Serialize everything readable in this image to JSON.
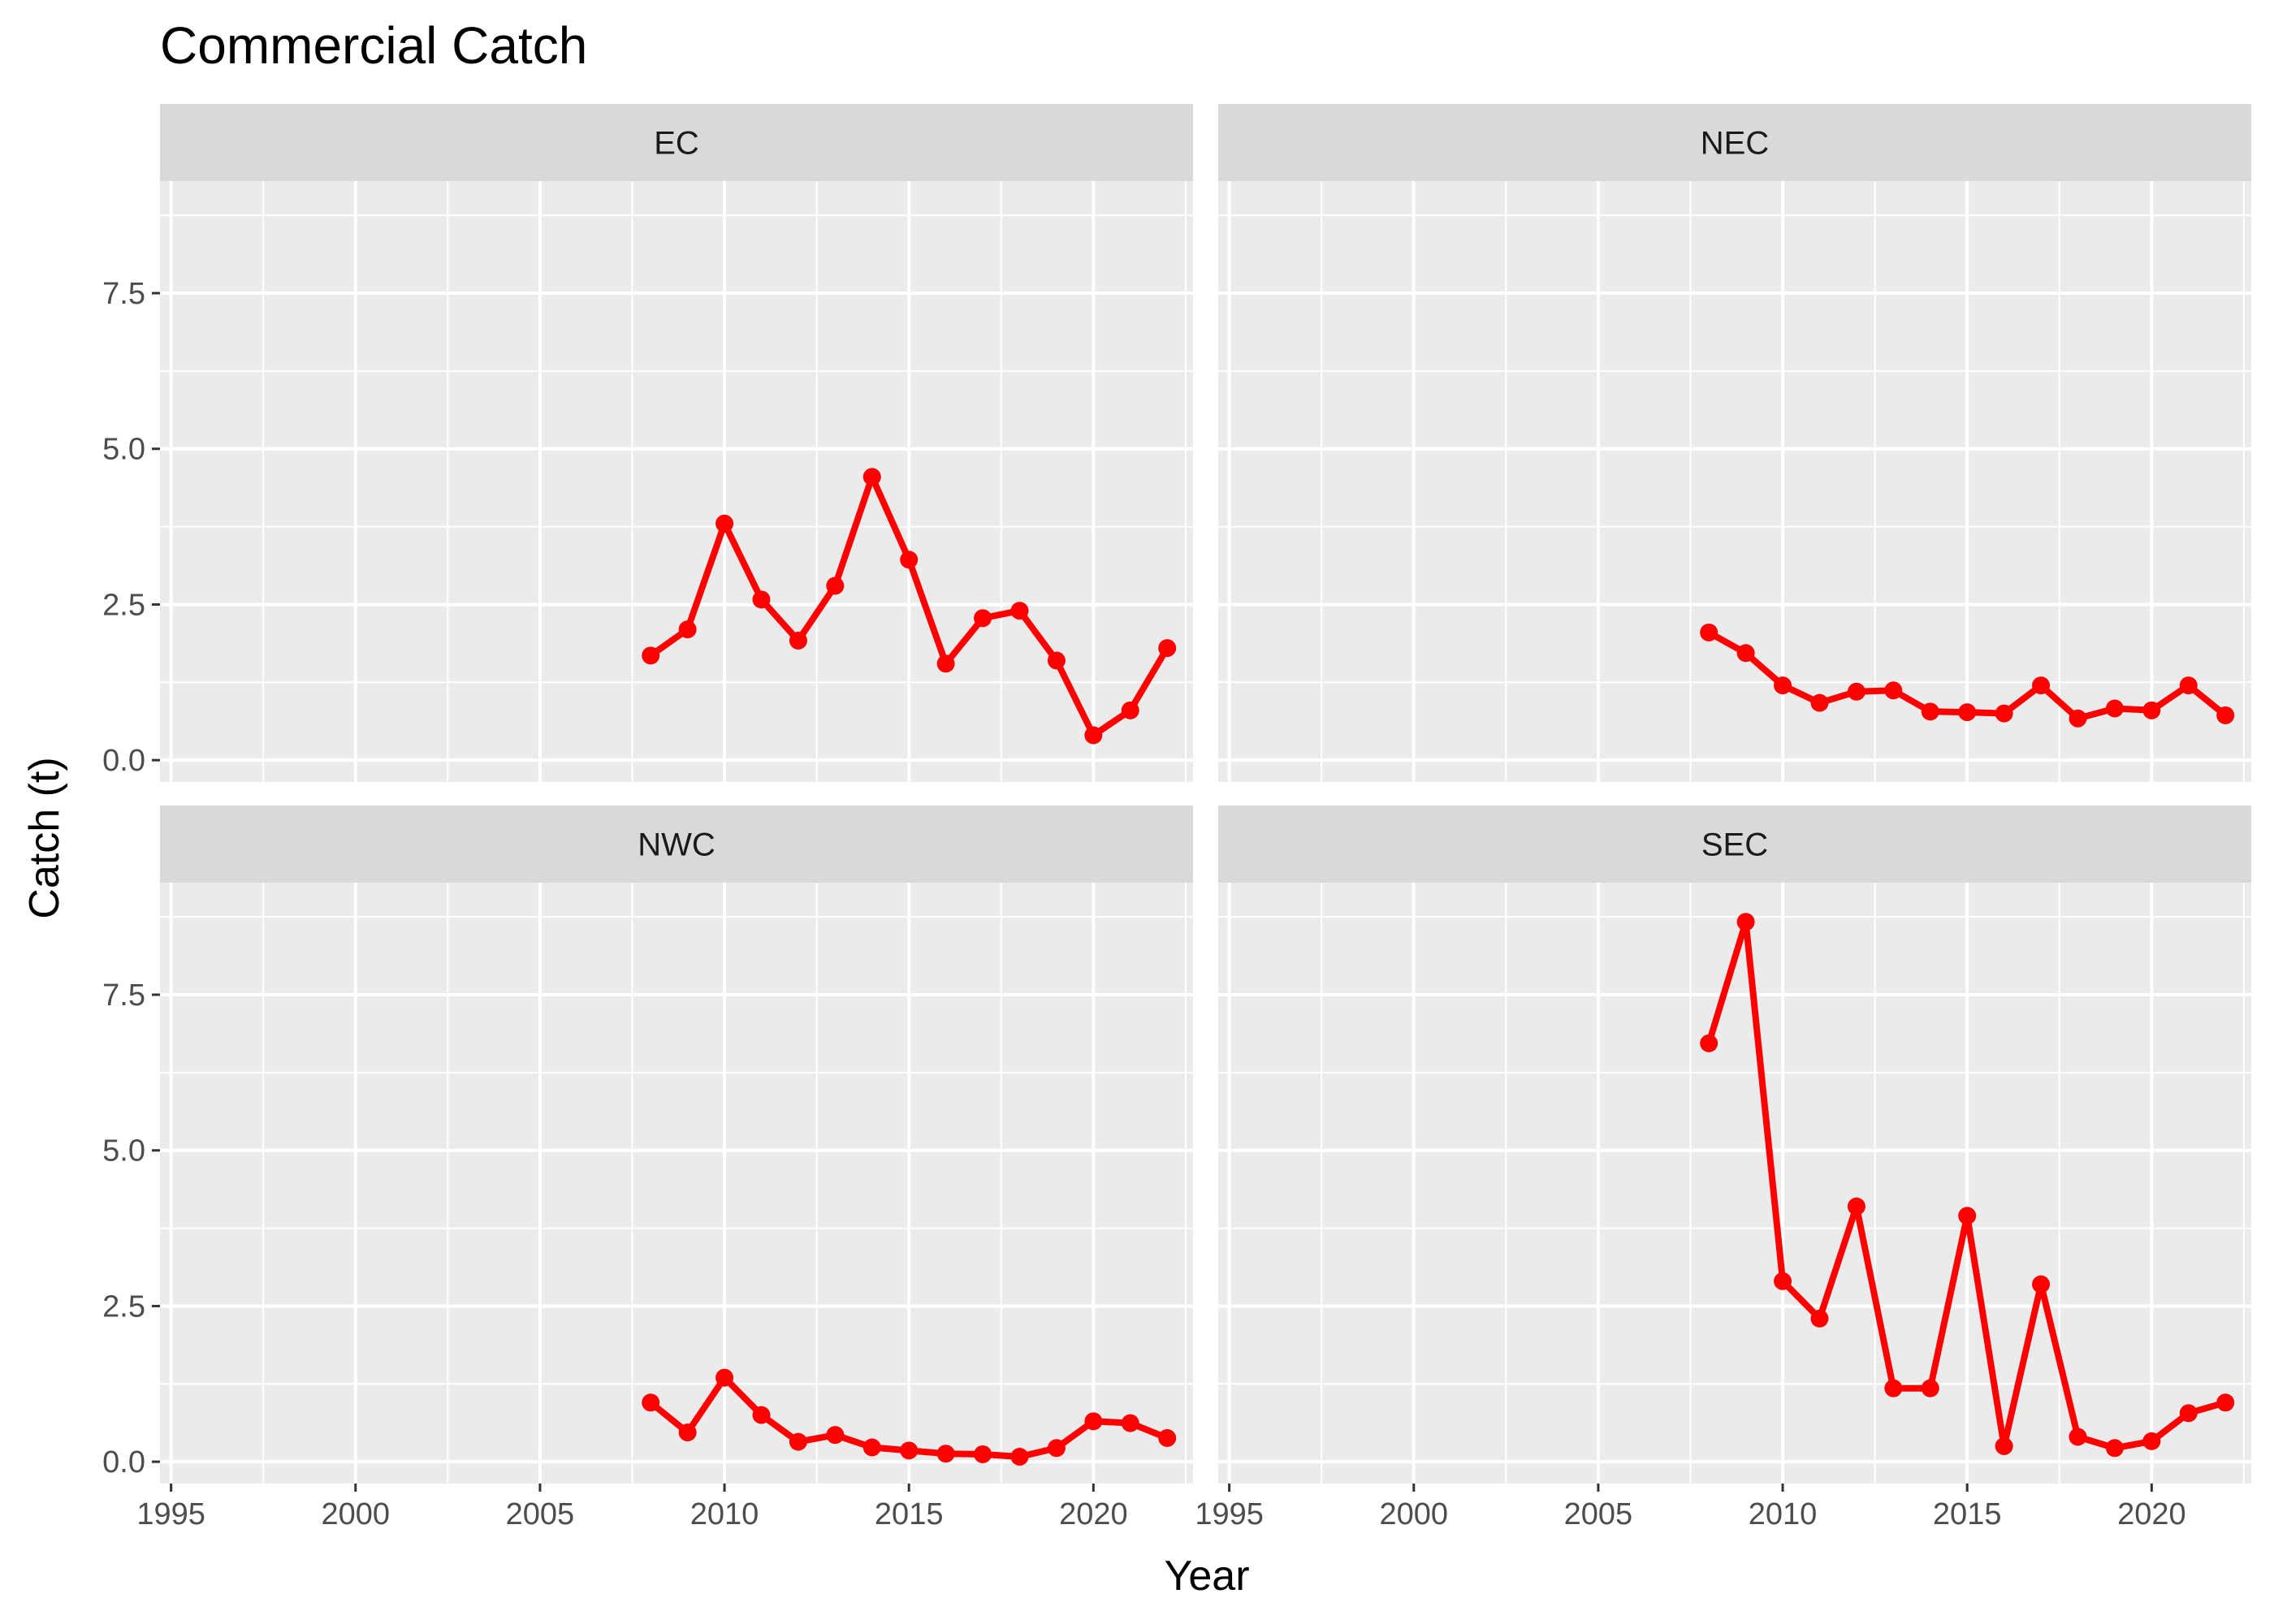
{
  "chart_data": {
    "type": "line",
    "title": "Commercial Catch",
    "xlabel": "Year",
    "ylabel": "Catch (t)",
    "xlim": [
      1994.7,
      2022.7
    ],
    "ylim": [
      -0.35,
      9.3
    ],
    "x_ticks": [
      1995,
      2000,
      2005,
      2010,
      2015,
      2020
    ],
    "y_ticks": [
      0.0,
      2.5,
      5.0,
      7.5
    ],
    "y_tick_labels": [
      "0.0",
      "2.5",
      "5.0",
      "7.5"
    ],
    "grid": true,
    "legend": "none",
    "colors": {
      "series": "#ff0000",
      "panel_bg": "#ebebeb",
      "strip_bg": "#d9d9d9",
      "grid": "#ffffff"
    },
    "panels": [
      {
        "name": "EC",
        "x": [
          2008,
          2009,
          2010,
          2011,
          2012,
          2013,
          2014,
          2015,
          2016,
          2017,
          2018,
          2019,
          2020,
          2021,
          2022
        ],
        "values": [
          1.68,
          2.1,
          3.8,
          2.58,
          1.92,
          2.8,
          4.55,
          3.22,
          1.55,
          2.28,
          2.4,
          1.6,
          0.4,
          0.8,
          1.8
        ]
      },
      {
        "name": "NEC",
        "x": [
          2008,
          2009,
          2010,
          2011,
          2012,
          2013,
          2014,
          2015,
          2016,
          2017,
          2018,
          2019,
          2020,
          2021,
          2022
        ],
        "values": [
          2.05,
          1.72,
          1.2,
          0.92,
          1.1,
          1.12,
          0.78,
          0.77,
          0.75,
          1.2,
          0.67,
          0.83,
          0.8,
          1.2,
          0.72
        ]
      },
      {
        "name": "NWC",
        "x": [
          2008,
          2009,
          2010,
          2011,
          2012,
          2013,
          2014,
          2015,
          2016,
          2017,
          2018,
          2019,
          2020,
          2021,
          2022
        ],
        "values": [
          0.95,
          0.47,
          1.35,
          0.75,
          0.32,
          0.43,
          0.23,
          0.18,
          0.13,
          0.12,
          0.08,
          0.22,
          0.65,
          0.62,
          0.38
        ]
      },
      {
        "name": "SEC",
        "x": [
          2008,
          2009,
          2010,
          2011,
          2012,
          2013,
          2014,
          2015,
          2016,
          2017,
          2018,
          2019,
          2020,
          2021,
          2022
        ],
        "values": [
          6.72,
          8.67,
          2.9,
          2.3,
          4.1,
          1.18,
          1.18,
          3.95,
          0.25,
          2.85,
          0.4,
          0.22,
          0.33,
          0.78,
          0.95
        ]
      }
    ]
  }
}
